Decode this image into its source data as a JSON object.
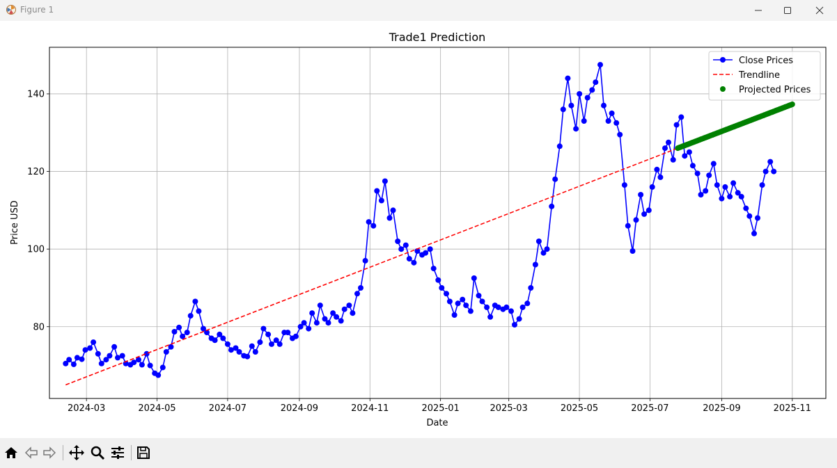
{
  "window": {
    "title": "Figure 1"
  },
  "toolbar": {
    "tools": [
      "home-icon",
      "back-icon",
      "forward-icon",
      "pan-icon",
      "zoom-icon",
      "configure-subplots-icon",
      "save-icon"
    ]
  },
  "chart_data": {
    "type": "line",
    "title": "Trade1 Prediction",
    "xlabel": "Date",
    "ylabel": "Price USD",
    "x_ticks": [
      "2024-03",
      "2024-05",
      "2024-07",
      "2024-09",
      "2024-11",
      "2025-01",
      "2025-03",
      "2025-05",
      "2025-07",
      "2025-09",
      "2025-11"
    ],
    "y_ticks": [
      80,
      100,
      120,
      140
    ],
    "xlim": [
      "2024-01-29",
      "2025-11-30"
    ],
    "ylim": [
      61.5,
      152
    ],
    "grid": true,
    "legend_position": "top-right",
    "colors": {
      "close": "#0000ff",
      "trend": "#ff0000",
      "projected": "#008000"
    },
    "series": [
      {
        "name": "Close Prices",
        "style": "line-marker",
        "points": [
          [
            "2024-02-12",
            70.5
          ],
          [
            "2024-02-15",
            71.5
          ],
          [
            "2024-02-19",
            70.3
          ],
          [
            "2024-02-22",
            72
          ],
          [
            "2024-02-26",
            71.6
          ],
          [
            "2024-02-29",
            74
          ],
          [
            "2024-03-04",
            74.5
          ],
          [
            "2024-03-07",
            76
          ],
          [
            "2024-03-11",
            73
          ],
          [
            "2024-03-14",
            70.5
          ],
          [
            "2024-03-18",
            71.5
          ],
          [
            "2024-03-21",
            72.5
          ],
          [
            "2024-03-25",
            74.8
          ],
          [
            "2024-03-28",
            72
          ],
          [
            "2024-04-01",
            72.5
          ],
          [
            "2024-04-04",
            70.5
          ],
          [
            "2024-04-08",
            70.2
          ],
          [
            "2024-04-11",
            70.8
          ],
          [
            "2024-04-15",
            71.5
          ],
          [
            "2024-04-18",
            70.2
          ],
          [
            "2024-04-22",
            73
          ],
          [
            "2024-04-25",
            70
          ],
          [
            "2024-04-29",
            68
          ],
          [
            "2024-05-02",
            67.5
          ],
          [
            "2024-05-06",
            69.5
          ],
          [
            "2024-05-09",
            73.5
          ],
          [
            "2024-05-13",
            74.8
          ],
          [
            "2024-05-16",
            78.7
          ],
          [
            "2024-05-20",
            79.8
          ],
          [
            "2024-05-23",
            77.5
          ],
          [
            "2024-05-27",
            78.5
          ],
          [
            "2024-05-30",
            82.8
          ],
          [
            "2024-06-03",
            86.5
          ],
          [
            "2024-06-06",
            84
          ],
          [
            "2024-06-10",
            79.5
          ],
          [
            "2024-06-13",
            78.5
          ],
          [
            "2024-06-17",
            77
          ],
          [
            "2024-06-20",
            76.5
          ],
          [
            "2024-06-24",
            78
          ],
          [
            "2024-06-27",
            77
          ],
          [
            "2024-07-01",
            75.5
          ],
          [
            "2024-07-04",
            74
          ],
          [
            "2024-07-08",
            74.5
          ],
          [
            "2024-07-11",
            73.5
          ],
          [
            "2024-07-15",
            72.5
          ],
          [
            "2024-07-18",
            72.3
          ],
          [
            "2024-07-22",
            75
          ],
          [
            "2024-07-25",
            73.5
          ],
          [
            "2024-07-29",
            76
          ],
          [
            "2024-08-01",
            79.5
          ],
          [
            "2024-08-05",
            78
          ],
          [
            "2024-08-08",
            75.5
          ],
          [
            "2024-08-12",
            76.5
          ],
          [
            "2024-08-15",
            75.5
          ],
          [
            "2024-08-19",
            78.5
          ],
          [
            "2024-08-22",
            78.5
          ],
          [
            "2024-08-26",
            77
          ],
          [
            "2024-08-29",
            77.5
          ],
          [
            "2024-09-02",
            80
          ],
          [
            "2024-09-05",
            81
          ],
          [
            "2024-09-09",
            79.5
          ],
          [
            "2024-09-12",
            83.5
          ],
          [
            "2024-09-16",
            81
          ],
          [
            "2024-09-19",
            85.5
          ],
          [
            "2024-09-23",
            82
          ],
          [
            "2024-09-26",
            81
          ],
          [
            "2024-09-30",
            83.5
          ],
          [
            "2024-10-03",
            82.5
          ],
          [
            "2024-10-07",
            81.5
          ],
          [
            "2024-10-10",
            84.5
          ],
          [
            "2024-10-14",
            85.5
          ],
          [
            "2024-10-17",
            83.5
          ],
          [
            "2024-10-21",
            88.5
          ],
          [
            "2024-10-24",
            90
          ],
          [
            "2024-10-28",
            97
          ],
          [
            "2024-10-31",
            107
          ],
          [
            "2024-11-04",
            106
          ],
          [
            "2024-11-07",
            115
          ],
          [
            "2024-11-11",
            112.5
          ],
          [
            "2024-11-14",
            117.5
          ],
          [
            "2024-11-18",
            108
          ],
          [
            "2024-11-21",
            110
          ],
          [
            "2024-11-25",
            102
          ],
          [
            "2024-11-28",
            100
          ],
          [
            "2024-12-02",
            101
          ],
          [
            "2024-12-05",
            97.5
          ],
          [
            "2024-12-09",
            96.5
          ],
          [
            "2024-12-12",
            99.5
          ],
          [
            "2024-12-16",
            98.5
          ],
          [
            "2024-12-19",
            99
          ],
          [
            "2024-12-23",
            100
          ],
          [
            "2024-12-26",
            95
          ],
          [
            "2024-12-30",
            92
          ],
          [
            "2025-01-02",
            90
          ],
          [
            "2025-01-06",
            88.5
          ],
          [
            "2025-01-09",
            86.5
          ],
          [
            "2025-01-13",
            83
          ],
          [
            "2025-01-16",
            86
          ],
          [
            "2025-01-20",
            87
          ],
          [
            "2025-01-23",
            85.5
          ],
          [
            "2025-01-27",
            84
          ],
          [
            "2025-01-30",
            92.5
          ],
          [
            "2025-02-03",
            88
          ],
          [
            "2025-02-06",
            86.5
          ],
          [
            "2025-02-10",
            85
          ],
          [
            "2025-02-13",
            82.5
          ],
          [
            "2025-02-17",
            85.5
          ],
          [
            "2025-02-20",
            85
          ],
          [
            "2025-02-24",
            84.5
          ],
          [
            "2025-02-27",
            85
          ],
          [
            "2025-03-03",
            84
          ],
          [
            "2025-03-06",
            80.5
          ],
          [
            "2025-03-10",
            82
          ],
          [
            "2025-03-13",
            85
          ],
          [
            "2025-03-17",
            86
          ],
          [
            "2025-03-20",
            90
          ],
          [
            "2025-03-24",
            96
          ],
          [
            "2025-03-27",
            102
          ],
          [
            "2025-03-31",
            99
          ],
          [
            "2025-04-03",
            100
          ],
          [
            "2025-04-07",
            111
          ],
          [
            "2025-04-10",
            118
          ],
          [
            "2025-04-14",
            126.5
          ],
          [
            "2025-04-17",
            136
          ],
          [
            "2025-04-21",
            144
          ],
          [
            "2025-04-24",
            137
          ],
          [
            "2025-04-28",
            131
          ],
          [
            "2025-05-01",
            140
          ],
          [
            "2025-05-05",
            133
          ],
          [
            "2025-05-08",
            139
          ],
          [
            "2025-05-12",
            141
          ],
          [
            "2025-05-15",
            143
          ],
          [
            "2025-05-19",
            147.5
          ],
          [
            "2025-05-22",
            137
          ],
          [
            "2025-05-26",
            133
          ],
          [
            "2025-05-29",
            135
          ],
          [
            "2025-06-02",
            132.5
          ],
          [
            "2025-06-05",
            129.5
          ],
          [
            "2025-06-09",
            116.5
          ],
          [
            "2025-06-12",
            106
          ],
          [
            "2025-06-16",
            99.5
          ],
          [
            "2025-06-19",
            107.5
          ],
          [
            "2025-06-23",
            114
          ],
          [
            "2025-06-26",
            109
          ],
          [
            "2025-06-30",
            110
          ],
          [
            "2025-07-03",
            116
          ],
          [
            "2025-07-07",
            120.5
          ],
          [
            "2025-07-10",
            118.5
          ],
          [
            "2025-07-14",
            126
          ],
          [
            "2025-07-17",
            127.5
          ],
          [
            "2025-07-21",
            123
          ],
          [
            "2025-07-24",
            132
          ],
          [
            "2025-07-28",
            134
          ],
          [
            "2025-07-31",
            124
          ],
          [
            "2025-08-04",
            125
          ],
          [
            "2025-08-07",
            121.5
          ],
          [
            "2025-08-11",
            119.5
          ],
          [
            "2025-08-14",
            114
          ],
          [
            "2025-08-18",
            115
          ],
          [
            "2025-08-21",
            119
          ],
          [
            "2025-08-25",
            122
          ],
          [
            "2025-08-28",
            116.5
          ],
          [
            "2025-09-01",
            113
          ],
          [
            "2025-09-04",
            116
          ],
          [
            "2025-09-08",
            113.5
          ],
          [
            "2025-09-11",
            117
          ],
          [
            "2025-09-15",
            114.5
          ],
          [
            "2025-09-18",
            113.5
          ],
          [
            "2025-09-22",
            110.5
          ],
          [
            "2025-09-25",
            108.5
          ],
          [
            "2025-09-29",
            104
          ],
          [
            "2025-10-02",
            108
          ],
          [
            "2025-10-06",
            116.5
          ],
          [
            "2025-10-09",
            120
          ],
          [
            "2025-10-13",
            122.5
          ],
          [
            "2025-10-16",
            120
          ]
        ]
      },
      {
        "name": "Trendline",
        "style": "dashed",
        "points": [
          [
            "2024-02-12",
            65
          ],
          [
            "2025-07-25",
            126
          ]
        ]
      },
      {
        "name": "Projected Prices",
        "style": "marker",
        "start": [
          "2025-07-25",
          126
        ],
        "end": [
          "2025-11-01",
          137.3
        ],
        "count": 100
      }
    ]
  }
}
